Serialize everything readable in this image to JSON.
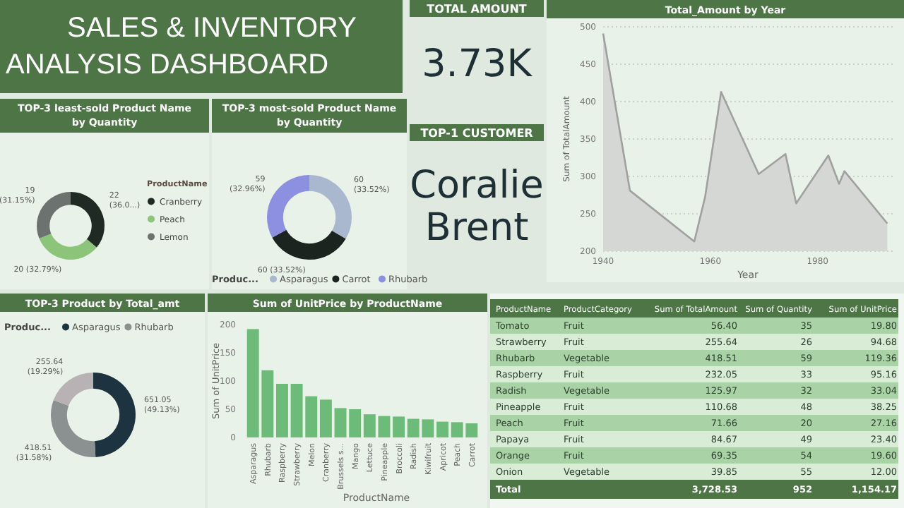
{
  "chart_data": [
    {
      "type": "other",
      "title": "SALES & INVENTORY ANALYSIS DASHBOARD"
    },
    {
      "type": "donut",
      "title": "TOP-3 least-sold Product Name by Quantity",
      "legend_title": "ProductName",
      "legend": "right",
      "categories": [
        "Cranberry",
        "Peach",
        "Lemon"
      ],
      "values": [
        22,
        20,
        19
      ],
      "colors": [
        "#1f2a24",
        "#8cc47a",
        "#6b7270"
      ],
      "value_labels": [
        "22 (36.0...)",
        "20 (32.79%)",
        "19 (31.15%)"
      ]
    },
    {
      "type": "donut",
      "title": "TOP-3 most-sold Product Name by Quantity",
      "legend_title": "Produc...",
      "legend": "bottom",
      "categories": [
        "Asparagus",
        "Carrot",
        "Rhubarb"
      ],
      "values": [
        60,
        60,
        59
      ],
      "colors": [
        "#a9b8cf",
        "#1c2420",
        "#8d8fe0"
      ],
      "value_labels": [
        "60 (33.52%)",
        "60 (33.52%)",
        "59 (32.96%)"
      ]
    },
    {
      "type": "other",
      "title": "TOTAL AMOUNT",
      "annotations": [
        "3.73K"
      ]
    },
    {
      "type": "other",
      "title": "TOP-1 CUSTOMER",
      "annotations": [
        "Coralie Brent"
      ]
    },
    {
      "type": "area",
      "title": "Total_Amount by Year",
      "xlabel": "Year",
      "ylabel": "Sum of TotalAmount",
      "x": [
        1940,
        1945,
        1957,
        1959,
        1962,
        1969,
        1974,
        1976,
        1982,
        1984,
        1985,
        1993
      ],
      "values": [
        491,
        281,
        213,
        272,
        413,
        303,
        330,
        264,
        328,
        290,
        307,
        237
      ],
      "color": "#a0a0a0",
      "xlim": [
        1940,
        1994
      ],
      "xticks": [
        1940,
        1960,
        1980
      ],
      "ylim": [
        200,
        500
      ],
      "yticks": [
        200,
        250,
        300,
        350,
        400,
        450,
        500
      ],
      "grid": "y"
    },
    {
      "type": "donut",
      "title": "TOP-3 Product by Total_amt",
      "legend_title": "Produc...",
      "legend": "top",
      "categories": [
        "Asparagus",
        "Rhubarb",
        null
      ],
      "values": [
        651.05,
        418.51,
        255.64
      ],
      "colors": [
        "#1e3340",
        "#8a9190",
        "#b8b2b4"
      ],
      "value_labels": [
        "651.05 (49.13%)",
        "418.51 (31.58%)",
        "255.64 (19.29%)"
      ]
    },
    {
      "type": "bar",
      "title": "Sum of UnitPrice by ProductName",
      "xlabel": "ProductName",
      "ylabel": "Sum of UnitPrice",
      "categories": [
        "Asparagus",
        "Rhubarb",
        "Raspberry",
        "Strawberry",
        "Melon",
        "Cranberry",
        "Brussels s...",
        "Mango",
        "Lettuce",
        "Pineapple",
        "Broccoli",
        "Radish",
        "Kiwifruit",
        "Apricot",
        "Peach",
        "Carrot"
      ],
      "values": [
        192,
        119,
        95,
        95,
        73,
        67,
        52,
        50,
        41,
        38,
        37,
        33,
        32,
        28,
        27,
        25
      ],
      "color": "#6dbb78",
      "ylim": [
        0,
        200
      ],
      "yticks": [
        0,
        50,
        100,
        150,
        200
      ]
    },
    {
      "type": "other",
      "categories": [
        "ProductName",
        "ProductCategory",
        "Sum of TotalAmount",
        "Sum of Quantity",
        "Sum of UnitPrice"
      ],
      "cell_labels": [
        [
          "Tomato",
          "Fruit",
          "56.40",
          "35",
          "19.80"
        ],
        [
          "Strawberry",
          "Fruit",
          "255.64",
          "26",
          "94.68"
        ],
        [
          "Rhubarb",
          "Vegetable",
          "418.51",
          "59",
          "119.36"
        ],
        [
          "Raspberry",
          "Fruit",
          "232.05",
          "33",
          "95.16"
        ],
        [
          "Radish",
          "Vegetable",
          "125.97",
          "32",
          "33.04"
        ],
        [
          "Pineapple",
          "Fruit",
          "110.68",
          "48",
          "38.25"
        ],
        [
          "Peach",
          "Fruit",
          "71.66",
          "20",
          "27.16"
        ],
        [
          "Papaya",
          "Fruit",
          "84.67",
          "49",
          "23.40"
        ],
        [
          "Orange",
          "Fruit",
          "69.35",
          "54",
          "19.60"
        ],
        [
          "Onion",
          "Vegetable",
          "39.85",
          "55",
          "12.00"
        ]
      ],
      "totals": [
        "Total",
        null,
        "3,728.53",
        "952",
        "1,154.17"
      ]
    }
  ]
}
